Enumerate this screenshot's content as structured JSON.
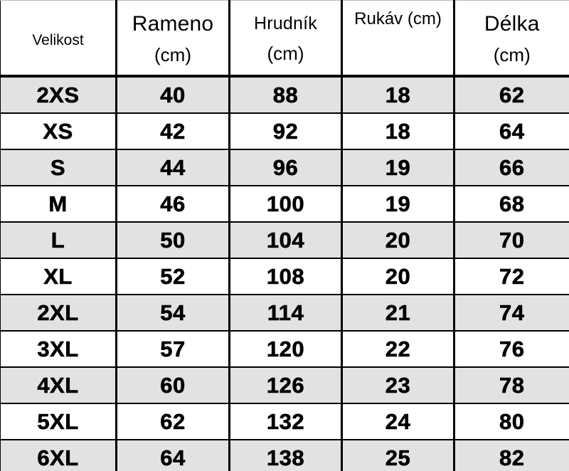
{
  "header": {
    "cells": [
      {
        "main": "Velikost",
        "sub": ""
      },
      {
        "main": "Rameno",
        "sub": "(cm)"
      },
      {
        "main": "Hrudník",
        "sub": "(cm)"
      },
      {
        "main": "Rukáv (cm)",
        "sub": ""
      },
      {
        "main": "Délka",
        "sub": "(cm)"
      }
    ]
  },
  "chart_data": {
    "type": "table",
    "title": "Size chart (Czech): garment measurements in cm per size",
    "columns": [
      "Velikost",
      "Rameno (cm)",
      "Hrudník (cm)",
      "Rukáv (cm)",
      "Délka (cm)"
    ],
    "rows": [
      [
        "2XS",
        40,
        88,
        18,
        62
      ],
      [
        "XS",
        42,
        92,
        18,
        64
      ],
      [
        "S",
        44,
        96,
        19,
        66
      ],
      [
        "M",
        46,
        100,
        19,
        68
      ],
      [
        "L",
        50,
        104,
        20,
        70
      ],
      [
        "XL",
        52,
        108,
        20,
        72
      ],
      [
        "2XL",
        54,
        114,
        21,
        74
      ],
      [
        "3XL",
        57,
        120,
        22,
        76
      ],
      [
        "4XL",
        60,
        126,
        23,
        78
      ],
      [
        "5XL",
        62,
        132,
        24,
        80
      ],
      [
        "6XL",
        64,
        138,
        25,
        82
      ]
    ],
    "layout": {
      "grid": "full-borders-black",
      "row_striping": "odd-rows-gray",
      "header_background": "#ffffff"
    }
  },
  "colors": {
    "row_stripe": "#e2e2e2",
    "row_plain": "#ffffff",
    "border": "#000000",
    "text": "#000000"
  }
}
